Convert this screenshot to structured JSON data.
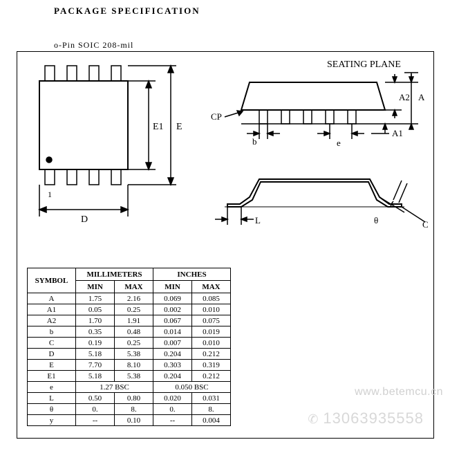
{
  "title": "PACKAGE SPECIFICATION",
  "subtitle": "o-Pin SOIC 208-mil",
  "seating_plane_label": "SEATING PLANE",
  "dim_labels": {
    "E": "E",
    "E1": "E1",
    "D": "D",
    "pin1": "1",
    "A": "A",
    "A1": "A1",
    "A2": "A2",
    "b": "b",
    "e": "e",
    "CP": "CP",
    "L": "L",
    "theta": "θ",
    "C": "C"
  },
  "table": {
    "header_symbol": "SYMBOL",
    "header_mm": "MILLIMETERS",
    "header_in": "INCHES",
    "header_min": "MIN",
    "header_max": "MAX",
    "rows": [
      {
        "sym": "A",
        "mm_min": "1.75",
        "mm_max": "2.16",
        "in_min": "0.069",
        "in_max": "0.085"
      },
      {
        "sym": "A1",
        "mm_min": "0.05",
        "mm_max": "0.25",
        "in_min": "0.002",
        "in_max": "0.010"
      },
      {
        "sym": "A2",
        "mm_min": "1.70",
        "mm_max": "1.91",
        "in_min": "0.067",
        "in_max": "0.075"
      },
      {
        "sym": "b",
        "mm_min": "0.35",
        "mm_max": "0.48",
        "in_min": "0.014",
        "in_max": "0.019"
      },
      {
        "sym": "C",
        "mm_min": "0.19",
        "mm_max": "0.25",
        "in_min": "0.007",
        "in_max": "0.010"
      },
      {
        "sym": "D",
        "mm_min": "5.18",
        "mm_max": "5.38",
        "in_min": "0.204",
        "in_max": "0.212"
      },
      {
        "sym": "E",
        "mm_min": "7.70",
        "mm_max": "8.10",
        "in_min": "0.303",
        "in_max": "0.319"
      },
      {
        "sym": "E1",
        "mm_min": "5.18",
        "mm_max": "5.38",
        "in_min": "0.204",
        "in_max": "0.212"
      },
      {
        "sym": "e",
        "mm_span": "1.27  BSC",
        "in_span": "0.050  BSC"
      },
      {
        "sym": "L",
        "mm_min": "0.50",
        "mm_max": "0.80",
        "in_min": "0.020",
        "in_max": "0.031"
      },
      {
        "sym": "θ",
        "mm_min": "0.",
        "mm_max": "8.",
        "in_min": "0.",
        "in_max": "8."
      },
      {
        "sym": "y",
        "mm_min": "--",
        "mm_max": "0.10",
        "in_min": "--",
        "in_max": "0.004"
      }
    ]
  },
  "watermark_url": "www.betemcu.cn",
  "watermark_phone": "13063935558",
  "colors": {
    "stroke": "#000000",
    "bg": "#ffffff",
    "watermark": "#d0d0d0"
  }
}
